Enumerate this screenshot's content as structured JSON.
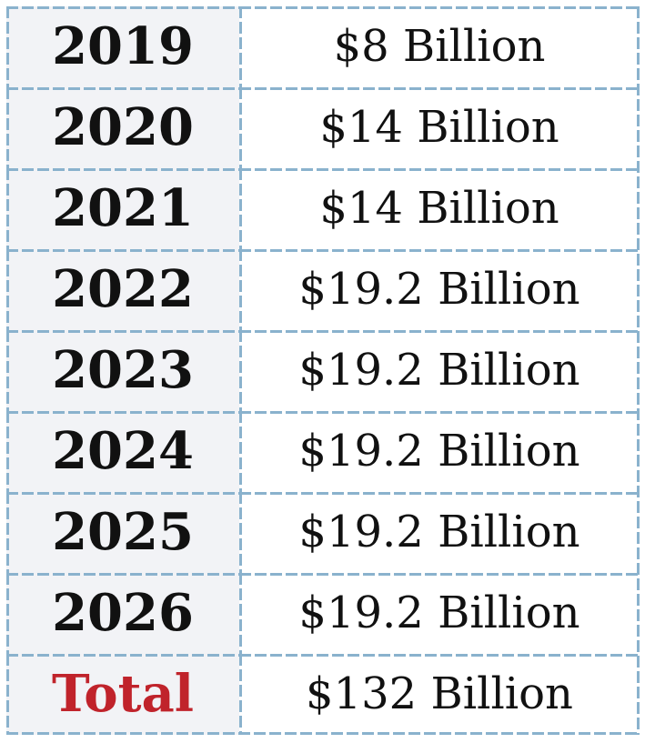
{
  "chart_data": {
    "type": "table",
    "categories": [
      "2019",
      "2020",
      "2021",
      "2022",
      "2023",
      "2024",
      "2025",
      "2026",
      "Total"
    ],
    "values_text": [
      "$8 Billion",
      "$14 Billion",
      "$14 Billion",
      "$19.2 Billion",
      "$19.2 Billion",
      "$19.2 Billion",
      "$19.2 Billion",
      "$19.2 Billion",
      "$132 Billion"
    ],
    "values_billions_usd": [
      8,
      14,
      14,
      19.2,
      19.2,
      19.2,
      19.2,
      19.2,
      132
    ],
    "layout": {
      "columns": 2,
      "rows": 9,
      "grid": "dashed",
      "legend": "none",
      "axes": "none"
    }
  },
  "table": {
    "rows": [
      {
        "label": "2019",
        "value": "$8 Billion",
        "is_total": false
      },
      {
        "label": "2020",
        "value": "$14 Billion",
        "is_total": false
      },
      {
        "label": "2021",
        "value": "$14 Billion",
        "is_total": false
      },
      {
        "label": "2022",
        "value": "$19.2 Billion",
        "is_total": false
      },
      {
        "label": "2023",
        "value": "$19.2 Billion",
        "is_total": false
      },
      {
        "label": "2024",
        "value": "$19.2 Billion",
        "is_total": false
      },
      {
        "label": "2025",
        "value": "$19.2 Billion",
        "is_total": false
      },
      {
        "label": "2026",
        "value": "$19.2 Billion",
        "is_total": false
      },
      {
        "label": "Total",
        "value": "$132 Billion",
        "is_total": true
      }
    ]
  },
  "colors": {
    "border": "#8ab2cd",
    "year_cell_bg": "#f2f3f6",
    "value_cell_bg": "#ffffff",
    "text": "#111111",
    "total_text": "#c0232b"
  }
}
